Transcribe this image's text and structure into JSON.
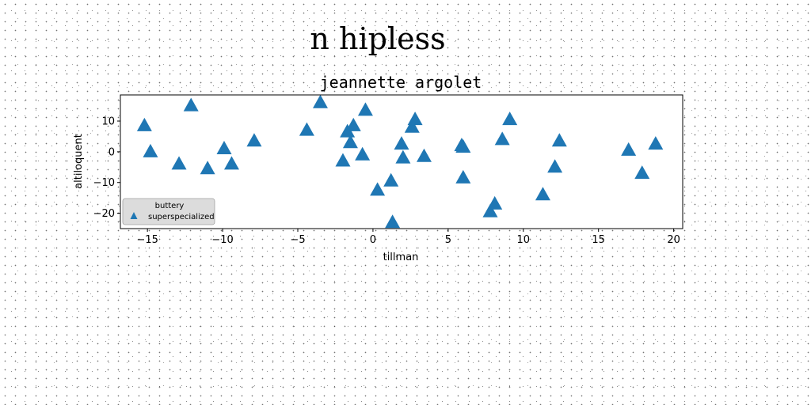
{
  "figure": {
    "suptitle": "n hipless"
  },
  "chart_data": {
    "type": "scatter",
    "title": "jeannette argolet",
    "xlabel": "tillman",
    "ylabel": "altiloquent",
    "xlim": [
      -16.8,
      20.6
    ],
    "ylim": [
      -25,
      18.5
    ],
    "xticks": [
      -15,
      -10,
      -5,
      0,
      5,
      10,
      15,
      20
    ],
    "yticks": [
      -20,
      -10,
      0,
      10
    ],
    "xtick_labels": [
      "−15",
      "−10",
      "−5",
      "0",
      "5",
      "10",
      "15",
      "20"
    ],
    "ytick_labels": [
      "−20",
      "−10",
      "0",
      "10"
    ],
    "grid": false,
    "legend_position": "lower-left",
    "legend_title": "buttery",
    "series": [
      {
        "name": "superspecialized",
        "marker": "triangle",
        "color": "#1f77b4",
        "points": [
          {
            "x": -15.2,
            "y": 8.5
          },
          {
            "x": -14.8,
            "y": 0.0
          },
          {
            "x": -12.9,
            "y": -4.0
          },
          {
            "x": -12.1,
            "y": 15.0
          },
          {
            "x": -11.0,
            "y": -5.5
          },
          {
            "x": -9.9,
            "y": 1.0
          },
          {
            "x": -9.4,
            "y": -4.0
          },
          {
            "x": -7.9,
            "y": 3.5
          },
          {
            "x": -4.4,
            "y": 7.0
          },
          {
            "x": -3.5,
            "y": 16.0
          },
          {
            "x": -2.0,
            "y": -3.0
          },
          {
            "x": -1.7,
            "y": 6.5
          },
          {
            "x": -1.5,
            "y": 3.0
          },
          {
            "x": -1.3,
            "y": 8.5
          },
          {
            "x": -0.7,
            "y": -1.0
          },
          {
            "x": -0.5,
            "y": 13.5
          },
          {
            "x": 0.3,
            "y": -12.5
          },
          {
            "x": 1.2,
            "y": -9.5
          },
          {
            "x": 1.3,
            "y": -23.0
          },
          {
            "x": 1.9,
            "y": 2.5
          },
          {
            "x": 2.0,
            "y": -2.0
          },
          {
            "x": 2.6,
            "y": 8.0
          },
          {
            "x": 2.8,
            "y": 10.5
          },
          {
            "x": 3.4,
            "y": -1.5
          },
          {
            "x": 5.9,
            "y": 2.0
          },
          {
            "x": 6.0,
            "y": 1.5
          },
          {
            "x": 6.0,
            "y": -8.5
          },
          {
            "x": 7.8,
            "y": -19.5
          },
          {
            "x": 8.1,
            "y": -17.0
          },
          {
            "x": 8.6,
            "y": 4.0
          },
          {
            "x": 9.1,
            "y": 10.5
          },
          {
            "x": 11.3,
            "y": -14.0
          },
          {
            "x": 12.1,
            "y": -5.0
          },
          {
            "x": 12.4,
            "y": 3.5
          },
          {
            "x": 17.0,
            "y": 0.5
          },
          {
            "x": 17.9,
            "y": -7.0
          },
          {
            "x": 18.8,
            "y": 2.5
          }
        ]
      }
    ]
  }
}
